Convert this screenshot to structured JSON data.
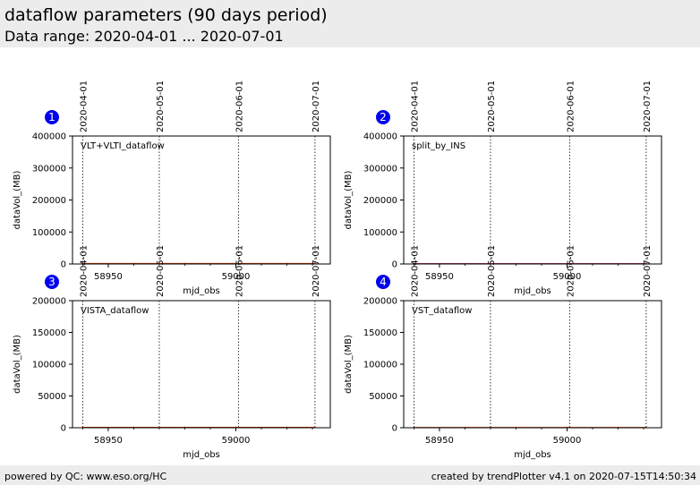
{
  "header": {
    "title": "dataflow parameters (90 days period)",
    "subtitle": "Data range: 2020-04-01 ... 2020-07-01"
  },
  "footer": {
    "left": "powered by QC: www.eso.org/HC",
    "right": "created by trendPlotter v4.1 on 2020-07-15T14:50:34"
  },
  "colors": {
    "background": "#ffffff",
    "band": "#ececec",
    "badge": "#0000ee",
    "data_line": "#cc3300",
    "data_line_alt": "#9900cc"
  },
  "chart_data": [
    {
      "type": "line",
      "badge": "1",
      "label": "VLT+VLTI_dataflow",
      "xlabel": "mjd_obs",
      "ylabel": "dataVol_(MB)",
      "xlim": [
        58936,
        59037
      ],
      "ylim": [
        0,
        400000
      ],
      "xticks": [
        58950,
        59000
      ],
      "yticks": [
        0,
        100000,
        200000,
        300000,
        400000
      ],
      "date_markers": [
        {
          "label": "2020-04-01",
          "mjd": 58940
        },
        {
          "label": "2020-05-01",
          "mjd": 58970
        },
        {
          "label": "2020-06-01",
          "mjd": 59001
        },
        {
          "label": "2020-07-01",
          "mjd": 59031
        }
      ],
      "series": [
        {
          "color": "#cc3300",
          "x": [
            58940,
            58960,
            58980,
            59000,
            59020,
            59031
          ],
          "y": [
            1500,
            1500,
            1500,
            1500,
            1500,
            1500
          ]
        }
      ]
    },
    {
      "type": "line",
      "badge": "2",
      "label": "split_by_INS",
      "xlabel": "mjd_obs",
      "ylabel": "dataVol_(MB)",
      "xlim": [
        58936,
        59037
      ],
      "ylim": [
        0,
        400000
      ],
      "xticks": [
        58950,
        59000
      ],
      "yticks": [
        0,
        100000,
        200000,
        300000,
        400000
      ],
      "date_markers": [
        {
          "label": "2020-04-01",
          "mjd": 58940
        },
        {
          "label": "2020-05-01",
          "mjd": 58970
        },
        {
          "label": "2020-06-01",
          "mjd": 59001
        },
        {
          "label": "2020-07-01",
          "mjd": 59031
        }
      ],
      "series": [
        {
          "color": "#9900cc",
          "x": [
            58940,
            58960,
            58980,
            59000,
            59020,
            59031
          ],
          "y": [
            800,
            800,
            800,
            800,
            800,
            800
          ]
        },
        {
          "color": "#cc3300",
          "x": [
            58940,
            58960,
            58980,
            59000,
            59020,
            59031
          ],
          "y": [
            300,
            300,
            300,
            300,
            300,
            300
          ]
        }
      ]
    },
    {
      "type": "line",
      "badge": "3",
      "label": "VISTA_dataflow",
      "xlabel": "mjd_obs",
      "ylabel": "dataVol_(MB)",
      "xlim": [
        58936,
        59037
      ],
      "ylim": [
        0,
        200000
      ],
      "xticks": [
        58950,
        59000
      ],
      "yticks": [
        0,
        50000,
        100000,
        150000,
        200000
      ],
      "date_markers": [
        {
          "label": "2020-04-01",
          "mjd": 58940
        },
        {
          "label": "2020-05-01",
          "mjd": 58970
        },
        {
          "label": "2020-06-01",
          "mjd": 59001
        },
        {
          "label": "2020-07-01",
          "mjd": 59031
        }
      ],
      "series": [
        {
          "color": "#cc3300",
          "x": [
            58940,
            58960,
            58980,
            59000,
            59020,
            59031
          ],
          "y": [
            600,
            600,
            600,
            600,
            600,
            600
          ]
        }
      ]
    },
    {
      "type": "line",
      "badge": "4",
      "label": "VST_dataflow",
      "xlabel": "mjd_obs",
      "ylabel": "dataVol_(MB)",
      "xlim": [
        58936,
        59037
      ],
      "ylim": [
        0,
        200000
      ],
      "xticks": [
        58950,
        59000
      ],
      "yticks": [
        0,
        50000,
        100000,
        150000,
        200000
      ],
      "date_markers": [
        {
          "label": "2020-04-01",
          "mjd": 58940
        },
        {
          "label": "2020-05-01",
          "mjd": 58970
        },
        {
          "label": "2020-06-01",
          "mjd": 59001
        },
        {
          "label": "2020-07-01",
          "mjd": 59031
        }
      ],
      "series": [
        {
          "color": "#cc3300",
          "x": [
            58940,
            58960,
            58980,
            59000,
            59020,
            59031
          ],
          "y": [
            400,
            400,
            400,
            400,
            400,
            400
          ]
        }
      ]
    }
  ]
}
